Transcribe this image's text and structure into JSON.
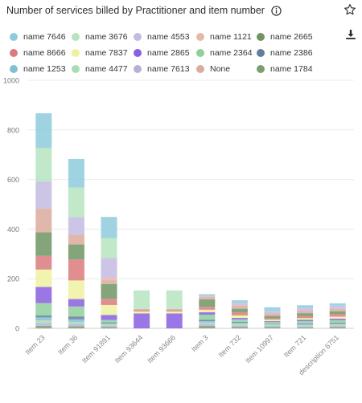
{
  "title": "Number of services billed by Practitioner and item number",
  "icons": {
    "info": "info-icon",
    "star": "star-icon",
    "download": "download-icon"
  },
  "chart_data": {
    "type": "bar",
    "stacked": true,
    "categories": [
      "Item 23",
      "Item 36",
      "Item 91891",
      "Item 93644",
      "Item 93666",
      "Item 3",
      "Item 732",
      "Item 10997",
      "Item 721",
      "description 6751"
    ],
    "ylim": [
      0,
      1000
    ],
    "yticks": [
      0,
      200,
      400,
      600,
      800,
      1000
    ],
    "grid": true,
    "legend_position": "top",
    "series": [
      {
        "name": "name 1784",
        "color": "#7a9e72",
        "values": [
          10,
          8,
          5,
          0,
          0,
          10,
          6,
          5,
          4,
          5
        ]
      },
      {
        "name": "name 7613",
        "color": "#b7b1d6",
        "values": [
          12,
          10,
          6,
          0,
          0,
          8,
          6,
          6,
          5,
          6
        ]
      },
      {
        "name": "name 4477",
        "color": "#a9dcb4",
        "values": [
          10,
          8,
          5,
          0,
          0,
          5,
          5,
          4,
          3,
          4
        ]
      },
      {
        "name": "name 1253",
        "color": "#7fc1d2",
        "values": [
          12,
          10,
          4,
          0,
          0,
          6,
          5,
          3,
          4,
          4
        ]
      },
      {
        "name": "name 2386",
        "color": "#657d9c",
        "values": [
          8,
          12,
          4,
          0,
          0,
          6,
          4,
          2,
          3,
          4
        ]
      },
      {
        "name": "name 2364",
        "color": "#8fcf9a",
        "values": [
          50,
          40,
          10,
          0,
          0,
          20,
          10,
          6,
          10,
          10
        ]
      },
      {
        "name": "name 2865",
        "color": "#8a5fe0",
        "values": [
          65,
          30,
          20,
          60,
          60,
          10,
          6,
          3,
          6,
          6
        ]
      },
      {
        "name": "name 7837",
        "color": "#eef2a0",
        "values": [
          70,
          75,
          40,
          8,
          8,
          10,
          10,
          6,
          6,
          8
        ]
      },
      {
        "name": "name 8666",
        "color": "#dc7a7e",
        "values": [
          55,
          85,
          25,
          5,
          5,
          12,
          12,
          5,
          8,
          10
        ]
      },
      {
        "name": "name 2665",
        "color": "#6f9462",
        "values": [
          95,
          60,
          60,
          0,
          0,
          30,
          15,
          10,
          12,
          12
        ]
      },
      {
        "name": "None",
        "color": "#dcaa9e",
        "values": [
          95,
          40,
          15,
          5,
          5,
          10,
          14,
          10,
          10,
          10
        ]
      },
      {
        "name": "name 1121",
        "color": "#e7b8a8",
        "values": [
          0,
          0,
          10,
          0,
          0,
          0,
          0,
          0,
          0,
          0
        ]
      },
      {
        "name": "name 4553",
        "color": "#c3bbe0",
        "values": [
          110,
          70,
          80,
          0,
          0,
          6,
          10,
          10,
          12,
          12
        ]
      },
      {
        "name": "name 3676",
        "color": "#b6e4be",
        "values": [
          135,
          120,
          80,
          75,
          75,
          0,
          0,
          0,
          0,
          0
        ]
      },
      {
        "name": "name 7646",
        "color": "#8ecbdc",
        "values": [
          140,
          115,
          85,
          0,
          0,
          5,
          10,
          15,
          10,
          10
        ]
      }
    ]
  }
}
